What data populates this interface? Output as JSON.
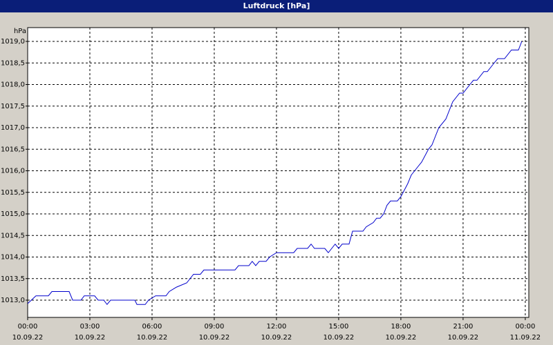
{
  "chart_data": {
    "type": "line",
    "title": "Luftdruck [hPa]",
    "y_label": "hPa",
    "color": "#0000cc",
    "grid": true,
    "x": [
      0,
      0.4,
      1.0,
      1.17,
      2.0,
      2.17,
      2.57,
      2.73,
      3.23,
      3.4,
      3.67,
      3.83,
      4.0,
      5.17,
      5.27,
      5.67,
      5.83,
      6.17,
      6.67,
      6.83,
      7.17,
      7.67,
      8.0,
      8.33,
      8.5,
      10.0,
      10.17,
      10.67,
      10.83,
      11.0,
      11.17,
      11.5,
      11.67,
      12.0,
      12.83,
      13.0,
      13.5,
      13.67,
      13.83,
      14.33,
      14.5,
      14.83,
      15.0,
      15.17,
      15.5,
      15.67,
      16.17,
      16.33,
      16.67,
      16.83,
      17.0,
      17.17,
      17.33,
      17.5,
      17.83,
      18.0,
      18.33,
      18.5,
      18.83,
      19.0,
      19.33,
      19.5,
      19.83,
      20.17,
      20.5,
      20.83,
      21.0,
      21.33,
      21.5,
      21.67,
      22.0,
      22.17,
      22.5,
      22.67,
      23.0,
      23.33,
      23.67,
      23.83
    ],
    "values": [
      1012.92,
      1013.1,
      1013.1,
      1013.2,
      1013.2,
      1013.0,
      1013.0,
      1013.1,
      1013.1,
      1013.0,
      1013.0,
      1012.9,
      1013.0,
      1013.0,
      1012.9,
      1012.9,
      1013.0,
      1013.1,
      1013.1,
      1013.2,
      1013.3,
      1013.4,
      1013.6,
      1013.6,
      1013.7,
      1013.7,
      1013.8,
      1013.8,
      1013.9,
      1013.8,
      1013.9,
      1013.9,
      1014.0,
      1014.1,
      1014.1,
      1014.2,
      1014.2,
      1014.3,
      1014.2,
      1014.2,
      1014.1,
      1014.3,
      1014.2,
      1014.3,
      1014.3,
      1014.6,
      1014.6,
      1014.7,
      1014.8,
      1014.9,
      1014.9,
      1015.0,
      1015.2,
      1015.3,
      1015.3,
      1015.4,
      1015.7,
      1015.9,
      1016.1,
      1016.2,
      1016.5,
      1016.6,
      1017.0,
      1017.2,
      1017.6,
      1017.8,
      1017.8,
      1018.0,
      1018.1,
      1018.1,
      1018.3,
      1018.3,
      1018.5,
      1018.6,
      1018.6,
      1018.8,
      1018.8,
      1019.0
    ],
    "xlim": [
      0,
      24.17
    ],
    "xticks": [
      {
        "value": 0,
        "label": [
          "00:00",
          "10.09.22"
        ]
      },
      {
        "value": 3,
        "label": [
          "03:00",
          "10.09.22"
        ]
      },
      {
        "value": 6,
        "label": [
          "06:00",
          "10.09.22"
        ]
      },
      {
        "value": 9,
        "label": [
          "09:00",
          "10.09.22"
        ]
      },
      {
        "value": 12,
        "label": [
          "12:00",
          "10.09.22"
        ]
      },
      {
        "value": 15,
        "label": [
          "15:00",
          "10.09.22"
        ]
      },
      {
        "value": 18,
        "label": [
          "18:00",
          "10.09.22"
        ]
      },
      {
        "value": 21,
        "label": [
          "21:00",
          "10.09.22"
        ]
      },
      {
        "value": 24,
        "label": [
          "00:00",
          "11.09.22"
        ]
      }
    ],
    "ylim": [
      1012.6,
      1019.32
    ],
    "yticks": [
      {
        "value": 1013.0,
        "label": "1013,0"
      },
      {
        "value": 1013.5,
        "label": "1013,5"
      },
      {
        "value": 1014.0,
        "label": "1014,0"
      },
      {
        "value": 1014.5,
        "label": "1014,5"
      },
      {
        "value": 1015.0,
        "label": "1015,0"
      },
      {
        "value": 1015.5,
        "label": "1015,5"
      },
      {
        "value": 1016.0,
        "label": "1016,0"
      },
      {
        "value": 1016.5,
        "label": "1016,5"
      },
      {
        "value": 1017.0,
        "label": "1017,0"
      },
      {
        "value": 1017.5,
        "label": "1017,5"
      },
      {
        "value": 1018.0,
        "label": "1018,0"
      },
      {
        "value": 1018.5,
        "label": "1018,5"
      },
      {
        "value": 1019.0,
        "label": "1019,0"
      }
    ]
  }
}
